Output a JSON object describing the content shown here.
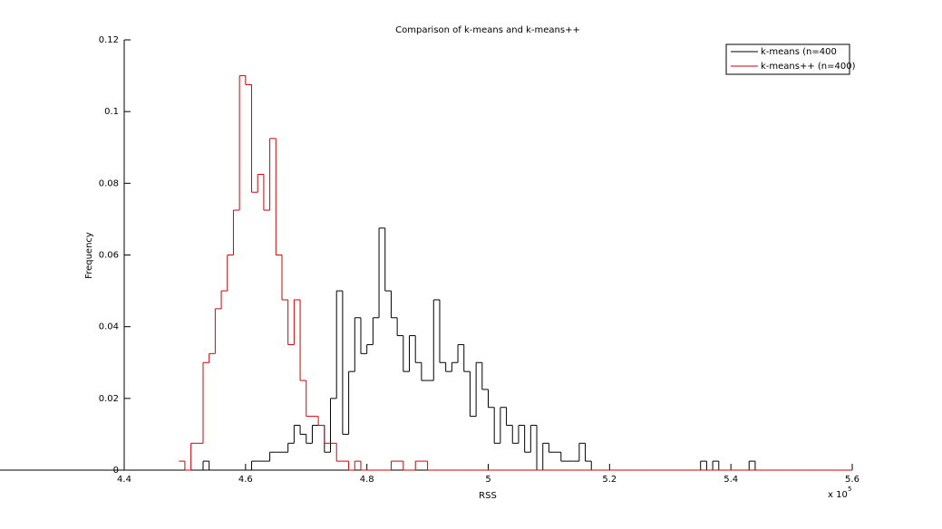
{
  "chart_data": {
    "type": "histogram",
    "title": "Comparison of k-means and k-means++",
    "x_label": "RSS",
    "y_label": "Frequency",
    "x_multiplier": "x 10",
    "x_multiplier_exponent": "5",
    "bins": [
      4.49,
      4.5,
      4.51,
      4.52,
      4.53,
      4.54,
      4.55,
      4.56,
      4.57,
      4.58,
      4.59,
      4.6,
      4.61,
      4.62,
      4.63,
      4.64,
      4.65,
      4.66,
      4.67,
      4.68,
      4.69,
      4.7,
      4.71,
      4.72,
      4.73,
      4.74,
      4.75,
      4.76,
      4.77,
      4.78,
      4.79,
      4.8,
      4.81,
      4.82,
      4.83,
      4.84,
      4.85,
      4.86,
      4.87,
      4.88,
      4.89,
      4.9,
      4.91,
      4.92,
      4.93,
      4.94,
      4.95,
      4.96,
      4.97,
      4.98,
      4.99,
      5,
      5.01,
      5.02,
      5.03,
      5.04,
      5.05,
      5.06,
      5.07,
      5.08,
      5.09,
      5.1,
      5.11,
      5.12,
      5.13,
      5.14,
      5.15,
      5.16,
      5.17,
      5.18,
      5.19,
      5.2,
      5.21,
      5.22,
      5.23,
      5.24,
      5.25,
      5.26,
      5.27,
      5.28,
      5.29,
      5.3,
      5.31,
      5.32,
      5.33,
      5.34,
      5.35,
      5.36,
      5.37,
      5.38,
      5.39,
      5.4,
      5.41,
      5.42,
      5.43,
      5.44,
      5.45,
      5.46,
      5.47,
      5.48,
      5.49,
      5.5,
      5.51,
      5.52,
      5.53,
      5.54,
      5.55,
      5.56,
      5.57,
      5.58,
      5.59,
      5.6
    ],
    "series": [
      {
        "name": "k-means (n=400",
        "color": "#000000",
        "values": [
          0,
          0,
          0,
          0,
          0.0025,
          0,
          0,
          0,
          0,
          0,
          0,
          0,
          0.0025,
          0.0025,
          0.0025,
          0.005,
          0.005,
          0.005,
          0.0075,
          0.0125,
          0.01,
          0.0075,
          0.0125,
          0.0125,
          0.005,
          0.02,
          0.05,
          0.01,
          0.0275,
          0.0425,
          0.0325,
          0.035,
          0.0425,
          0.0675,
          0.05,
          0.0425,
          0.0375,
          0.0275,
          0.0375,
          0.03,
          0.025,
          0.025,
          0.0475,
          0.03,
          0.0275,
          0.03,
          0.035,
          0.0275,
          0.015,
          0.03,
          0.0225,
          0.0175,
          0.0075,
          0.0175,
          0.0125,
          0.0075,
          0.0125,
          0.005,
          0.0125,
          0,
          0.0075,
          0.005,
          0.005,
          0.0025,
          0.0025,
          0.0025,
          0.0075,
          0.0025,
          0,
          0,
          0,
          0,
          0,
          0,
          0,
          0,
          0,
          0,
          0,
          0,
          0,
          0,
          0,
          0,
          0,
          0,
          0.0025,
          0,
          0.0025,
          0,
          0,
          0,
          0,
          0,
          0.0025,
          0,
          0,
          0,
          0,
          0,
          0,
          0,
          0,
          0,
          0,
          0,
          0,
          0,
          0,
          0,
          0,
          0
        ]
      },
      {
        "name": "k-means++ (n=400)",
        "color": "#d40000",
        "values": [
          0.0025,
          0,
          0.0075,
          0.0075,
          0.03,
          0.0325,
          0.045,
          0.05,
          0.06,
          0.0725,
          0.11,
          0.1075,
          0.0775,
          0.0825,
          0.0725,
          0.0925,
          0.06,
          0.0475,
          0.035,
          0.0475,
          0.025,
          0.015,
          0.015,
          0.0125,
          0.0075,
          0.0075,
          0.0025,
          0.0025,
          0,
          0.0025,
          0,
          0,
          0,
          0,
          0,
          0.0025,
          0.0025,
          0,
          0,
          0.0025,
          0.0025,
          0,
          0,
          0,
          0,
          0,
          0,
          0,
          0,
          0,
          0,
          0,
          0,
          0,
          0,
          0,
          0,
          0,
          0,
          0,
          0,
          0,
          0,
          0,
          0,
          0,
          0,
          0,
          0,
          0,
          0,
          0,
          0,
          0,
          0,
          0,
          0,
          0,
          0,
          0,
          0,
          0,
          0,
          0,
          0,
          0,
          0,
          0,
          0,
          0,
          0,
          0,
          0,
          0,
          0,
          0,
          0,
          0,
          0,
          0,
          0,
          0,
          0,
          0,
          0,
          0,
          0,
          0,
          0,
          0,
          0
        ]
      }
    ],
    "xlim": [
      4.4,
      5.6
    ],
    "xticks": [
      4.4,
      4.6,
      4.8,
      5,
      5.2,
      5.4,
      5.6
    ],
    "ylim": [
      0,
      0.12
    ],
    "yticks": [
      0,
      0.02,
      0.04,
      0.06,
      0.08,
      0.1,
      0.12
    ],
    "legend": "upper right"
  }
}
